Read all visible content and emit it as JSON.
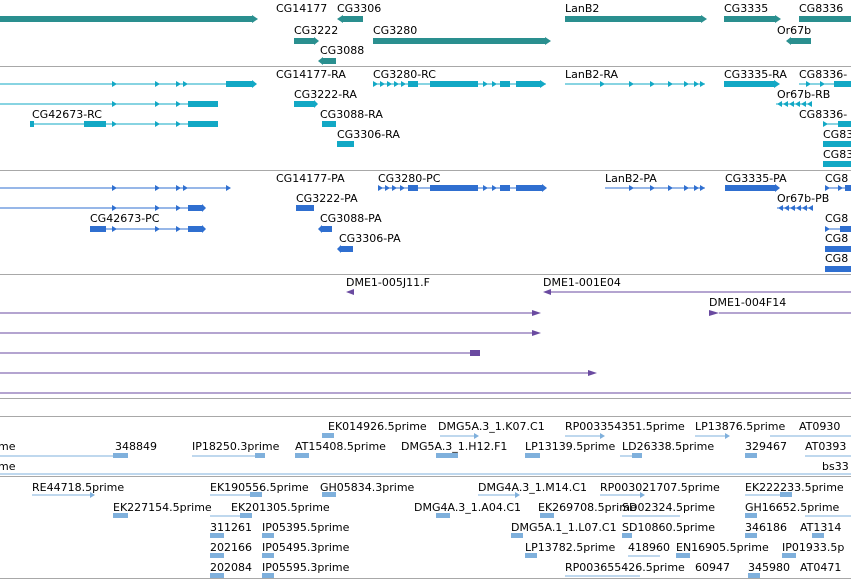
{
  "colors": {
    "gene": "#2a8f8f",
    "transcript_rc": "#12a8c5",
    "transcript_pa": "#2f6fd0",
    "clone": "#6a4aa0",
    "est": "#7fb0dc",
    "divider": "#a8a8a8"
  },
  "tracks": {
    "genes": {
      "labels": [
        "CG14177",
        "CG3306",
        "CG3222",
        "CG3280",
        "CG3088",
        "LanB2",
        "CG3335",
        "CG8336",
        "Or67b"
      ]
    },
    "transcripts_ra": {
      "labels": [
        "CG14177-RA",
        "CG3280-RC",
        "LanB2-RA",
        "CG3335-RA",
        "CG8336-",
        "CG3222-RA",
        "Or67b-RB",
        "CG42673-RC",
        "CG3088-RA",
        "CG8336-",
        "CG3306-RA",
        "CG83",
        "CG83"
      ]
    },
    "transcripts_pa": {
      "labels": [
        "CG14177-PA",
        "CG3280-PC",
        "LanB2-PA",
        "CG3335-PA",
        "CG8",
        "CG3222-PA",
        "Or67b-PB",
        "CG42673-PC",
        "CG3088-PA",
        "CG8",
        "CG3306-PA",
        "CG8",
        "CG8"
      ]
    },
    "clones": {
      "labels": [
        "DME1-005J11.F",
        "DME1-001E04",
        "DME1-004F14"
      ]
    },
    "ests_1": {
      "labels": [
        "EK014926.5prime",
        "DMG5A.3_1.K07.C1",
        "RP003354351.5prime",
        "LP13876.5prime",
        "AT0930",
        "me",
        "348849",
        "IP18250.3prime",
        "AT15408.5prime",
        "DMG5A.3_1.H12.F1",
        "LP13139.5prime",
        "LD26338.5prime",
        "329467",
        "AT0393",
        "me",
        "bs33"
      ]
    },
    "ests_2": {
      "labels": [
        "RE44718.5prime",
        "EK190556.5prime",
        "GH05834.3prime",
        "DMG4A.3_1.M14.C1",
        "RP003021707.5prime",
        "EK222233.5prime",
        "EK227154.5prime",
        "EK201305.5prime",
        "DMG4A.3_1.A04.C1",
        "EK269708.5prime",
        "SD02324.5prime",
        "GH16652.5prime",
        "311261",
        "IP05395.5prime",
        "DMG5A.1_1.L07.C1",
        "SD10860.5prime",
        "346186",
        "AT1314",
        "202166",
        "IP05495.3prime",
        "LP13782.5prime",
        "418960",
        "EN16905.5prime",
        "IP01933.5p",
        "202084",
        "IP05595.3prime",
        "RP003655426.5prime",
        "60947",
        "345980",
        "AT0471"
      ]
    }
  }
}
